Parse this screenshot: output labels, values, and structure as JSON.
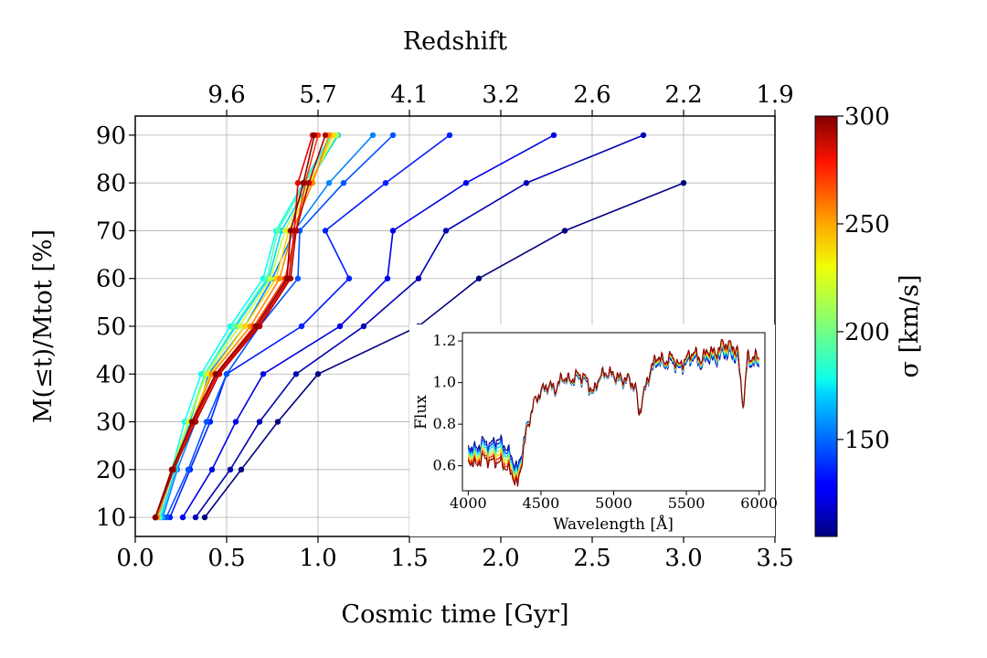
{
  "chart_data": [
    {
      "type": "line",
      "xlabel": "Cosmic time [Gyr]",
      "ylabel": "M(≤t)/Mtot [%]",
      "top_axis_label": "Redshift",
      "top_ticks": [
        {
          "t": 0.5,
          "label": "9.6"
        },
        {
          "t": 1.0,
          "label": "5.7"
        },
        {
          "t": 1.5,
          "label": "4.1"
        },
        {
          "t": 2.0,
          "label": "3.2"
        },
        {
          "t": 2.5,
          "label": "2.6"
        },
        {
          "t": 3.0,
          "label": "2.2"
        },
        {
          "t": 3.5,
          "label": "1.9"
        }
      ],
      "xlim": [
        0.0,
        3.5
      ],
      "ylim": [
        6,
        94
      ],
      "xticks": [
        {
          "v": 0.0,
          "label": "0.0"
        },
        {
          "v": 0.5,
          "label": "0.5"
        },
        {
          "v": 1.0,
          "label": "1.0"
        },
        {
          "v": 1.5,
          "label": "1.5"
        },
        {
          "v": 2.0,
          "label": "2.0"
        },
        {
          "v": 2.5,
          "label": "2.5"
        },
        {
          "v": 3.0,
          "label": "3.0"
        },
        {
          "v": 3.5,
          "label": "3.5"
        }
      ],
      "yticks": [
        {
          "v": 10,
          "label": "10"
        },
        {
          "v": 20,
          "label": "20"
        },
        {
          "v": 30,
          "label": "30"
        },
        {
          "v": 40,
          "label": "40"
        },
        {
          "v": 50,
          "label": "50"
        },
        {
          "v": 60,
          "label": "60"
        },
        {
          "v": 70,
          "label": "70"
        },
        {
          "v": 80,
          "label": "80"
        },
        {
          "v": 90,
          "label": "90"
        }
      ],
      "grid": true,
      "y_levels": [
        10,
        20,
        30,
        40,
        50,
        60,
        70,
        80,
        90
      ],
      "colorbar": {
        "label": "σ [km/s]",
        "range": [
          105,
          300
        ],
        "colormap": "jet",
        "ticks": [
          {
            "v": 150,
            "label": "150"
          },
          {
            "v": 200,
            "label": "200"
          },
          {
            "v": 250,
            "label": "250"
          },
          {
            "v": 300,
            "label": "300"
          }
        ]
      },
      "series": [
        {
          "sigma": 105,
          "x": [
            0.38,
            0.58,
            0.78,
            1.0,
            1.55,
            1.88,
            2.35,
            3.0
          ]
        },
        {
          "sigma": 115,
          "x": [
            0.33,
            0.52,
            0.68,
            0.88,
            1.25,
            1.55,
            1.7,
            2.14,
            2.78
          ]
        },
        {
          "sigma": 125,
          "x": [
            0.26,
            0.42,
            0.55,
            0.7,
            1.12,
            1.38,
            1.41,
            1.81,
            2.29
          ]
        },
        {
          "sigma": 135,
          "x": [
            0.19,
            0.3,
            0.41,
            0.5,
            0.91,
            1.17,
            1.04,
            1.37,
            1.72
          ]
        },
        {
          "sigma": 145,
          "x": [
            0.17,
            0.29,
            0.39,
            0.5,
            0.68,
            0.89,
            0.9,
            1.14,
            1.41
          ]
        },
        {
          "sigma": 155,
          "x": [
            0.15,
            0.23,
            0.33,
            0.4,
            0.6,
            0.75,
            0.87,
            1.06,
            1.3
          ]
        },
        {
          "sigma": 170,
          "x": [
            0.14,
            0.22,
            0.3,
            0.38,
            0.55,
            0.73,
            0.8,
            0.95,
            1.11
          ]
        },
        {
          "sigma": 180,
          "x": [
            0.13,
            0.2,
            0.27,
            0.36,
            0.52,
            0.7,
            0.77,
            0.92,
            1.07
          ]
        },
        {
          "sigma": 195,
          "x": [
            0.13,
            0.21,
            0.29,
            0.38,
            0.54,
            0.72,
            0.78,
            0.93,
            1.08
          ]
        },
        {
          "sigma": 215,
          "x": [
            0.12,
            0.2,
            0.29,
            0.39,
            0.57,
            0.74,
            0.82,
            0.95,
            1.1
          ]
        },
        {
          "sigma": 235,
          "x": [
            0.12,
            0.21,
            0.31,
            0.41,
            0.6,
            0.77,
            0.84,
            0.96,
            1.08
          ]
        },
        {
          "sigma": 250,
          "x": [
            0.12,
            0.21,
            0.31,
            0.42,
            0.63,
            0.79,
            0.86,
            0.97,
            1.06
          ]
        },
        {
          "sigma": 265,
          "x": [
            0.11,
            0.2,
            0.32,
            0.44,
            0.65,
            0.82,
            0.88,
            0.93,
            1.0
          ]
        },
        {
          "sigma": 280,
          "x": [
            0.11,
            0.2,
            0.32,
            0.45,
            0.67,
            0.84,
            0.87,
            0.89,
            0.97
          ]
        },
        {
          "sigma": 290,
          "x": [
            0.11,
            0.21,
            0.33,
            0.46,
            0.68,
            0.85,
            0.88,
            0.95,
            1.04
          ]
        },
        {
          "sigma": 298,
          "x": [
            0.11,
            0.2,
            0.31,
            0.44,
            0.66,
            0.83,
            0.85,
            0.92,
            0.98
          ]
        }
      ]
    },
    {
      "type": "line",
      "role": "inset",
      "xlabel": "Wavelength [Å]",
      "ylabel": "Flux",
      "xlim": [
        3960,
        6040
      ],
      "ylim": [
        0.48,
        1.24
      ],
      "xticks": [
        {
          "v": 4000,
          "label": "4000"
        },
        {
          "v": 4500,
          "label": "4500"
        },
        {
          "v": 5000,
          "label": "5000"
        },
        {
          "v": 5500,
          "label": "5500"
        },
        {
          "v": 6000,
          "label": "6000"
        }
      ],
      "yticks": [
        {
          "v": 0.6,
          "label": "0.6"
        },
        {
          "v": 0.8,
          "label": "0.8"
        },
        {
          "v": 1.0,
          "label": "1.0"
        },
        {
          "v": 1.2,
          "label": "1.2"
        }
      ],
      "spectrum_shape": {
        "lambda": [
          4000,
          4050,
          4100,
          4150,
          4200,
          4250,
          4300,
          4340,
          4400,
          4450,
          4500,
          4550,
          4600,
          4650,
          4700,
          4750,
          4800,
          4861,
          4900,
          4950,
          5000,
          5050,
          5100,
          5150,
          5175,
          5200,
          5250,
          5300,
          5350,
          5400,
          5450,
          5500,
          5550,
          5600,
          5650,
          5700,
          5750,
          5800,
          5850,
          5893,
          5920,
          5950,
          6000
        ],
        "flux_low_sigma": [
          0.7,
          0.68,
          0.72,
          0.7,
          0.73,
          0.7,
          0.64,
          0.58,
          0.78,
          0.9,
          0.95,
          0.98,
          0.96,
          1.02,
          1.0,
          1.02,
          1.01,
          0.94,
          1.02,
          1.04,
          1.03,
          1.0,
          1.01,
          0.97,
          0.86,
          0.92,
          1.04,
          1.1,
          1.08,
          1.1,
          1.06,
          1.09,
          1.12,
          1.08,
          1.12,
          1.1,
          1.14,
          1.13,
          1.12,
          0.9,
          1.1,
          1.09,
          1.09
        ],
        "flux_high_sigma": [
          0.63,
          0.6,
          0.64,
          0.62,
          0.62,
          0.6,
          0.56,
          0.5,
          0.76,
          0.9,
          0.96,
          0.99,
          0.97,
          1.03,
          1.01,
          1.04,
          1.03,
          0.95,
          1.03,
          1.05,
          1.04,
          1.02,
          1.02,
          0.98,
          0.84,
          0.93,
          1.06,
          1.13,
          1.1,
          1.13,
          1.08,
          1.12,
          1.15,
          1.11,
          1.16,
          1.14,
          1.19,
          1.18,
          1.16,
          0.88,
          1.13,
          1.12,
          1.13
        ]
      }
    }
  ]
}
